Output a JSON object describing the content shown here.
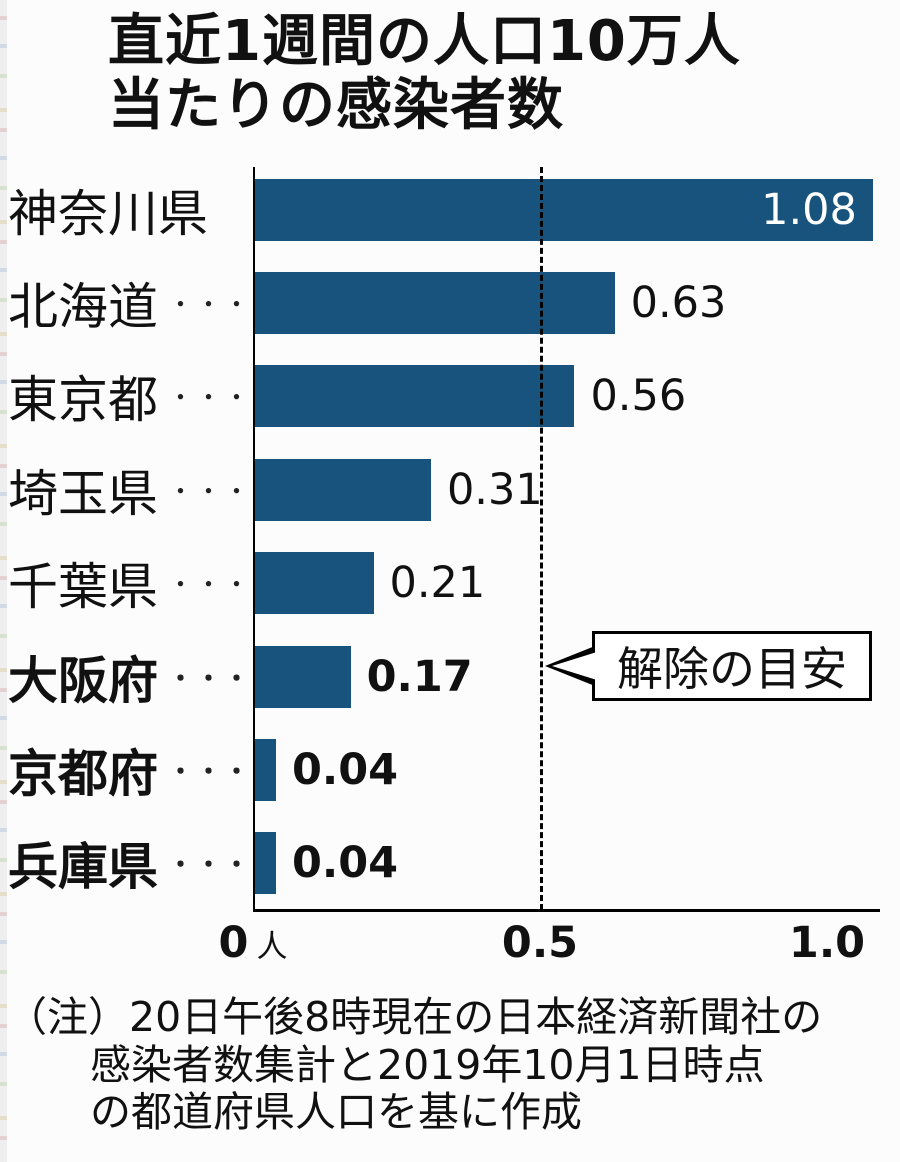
{
  "title": {
    "line1": "直近1週間の人口10万人",
    "line2": "当たりの感染者数"
  },
  "chart_data": {
    "type": "bar",
    "orientation": "horizontal",
    "title": "直近1週間の人口10万人当たりの感染者数",
    "categories": [
      "神奈川県",
      "北海道",
      "東京都",
      "埼玉県",
      "千葉県",
      "大阪府",
      "京都府",
      "兵庫県"
    ],
    "values": [
      1.08,
      0.63,
      0.56,
      0.31,
      0.21,
      0.17,
      0.04,
      0.04
    ],
    "leader_dots": [
      "",
      "・・・",
      "・・・",
      "・・・",
      "・・・",
      "・・・",
      "・・・",
      "・・・"
    ],
    "bold_rows": [
      false,
      false,
      false,
      false,
      false,
      true,
      true,
      true
    ],
    "value_inside": [
      true,
      false,
      false,
      false,
      false,
      false,
      false,
      false
    ],
    "bar_color": "#17537C",
    "xlim": [
      0,
      1.08
    ],
    "x_ticks": [
      {
        "value": 0,
        "label": "0",
        "unit": "人"
      },
      {
        "value": 0.5,
        "label": "0.5"
      },
      {
        "value": 1.0,
        "label": "1.0"
      }
    ],
    "reference_line": {
      "value": 0.5,
      "style": "dashed",
      "label": "解除の目安"
    },
    "grid": false,
    "legend": false
  },
  "annotation": {
    "label": "解除の目安"
  },
  "note": {
    "line1": "（注）20日午後8時現在の日本経済新聞社の",
    "line2": "感染者数集計と2019年10月1日時点",
    "line3": "の都道府県人口を基に作成"
  }
}
